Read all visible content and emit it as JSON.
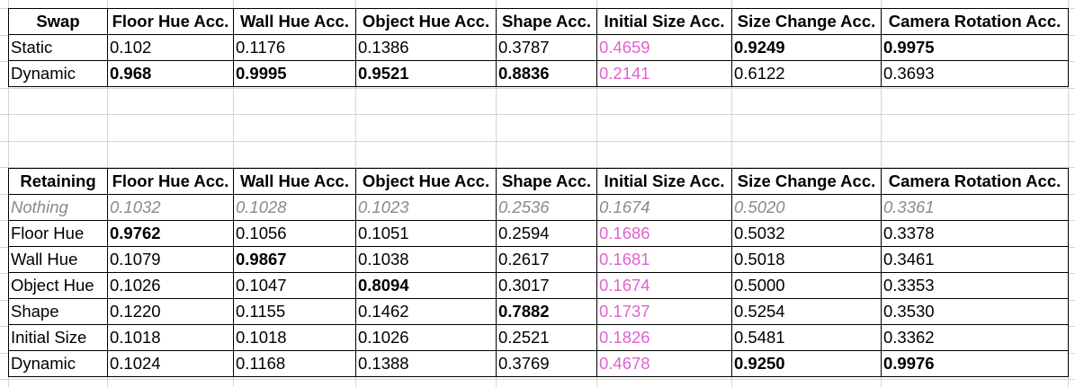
{
  "sheet": {
    "columns": [
      "",
      "Floor Hue Acc.",
      "Wall Hue Acc.",
      "Object Hue Acc.",
      "Shape Acc.",
      "Initial Size Acc.",
      "Size Change Acc.",
      "Camera Rotation Acc."
    ],
    "accent_pink": "#e062d0",
    "muted_gray": "#8a8a8a"
  },
  "swap_table": {
    "header": [
      "Swap",
      "Floor Hue Acc.",
      "Wall Hue Acc.",
      "Object Hue Acc.",
      "Shape Acc.",
      "Initial Size Acc.",
      "Size Change Acc.",
      "Camera Rotation Acc."
    ],
    "rows": [
      {
        "label": "Static",
        "values": [
          "0.102",
          "0.1176",
          "0.1386",
          "0.3787",
          "0.4659",
          "0.9249",
          "0.9975"
        ],
        "bold": [
          false,
          false,
          false,
          false,
          false,
          true,
          true
        ]
      },
      {
        "label": "Dynamic",
        "values": [
          "0.968",
          "0.9995",
          "0.9521",
          "0.8836",
          "0.2141",
          "0.6122",
          "0.3693"
        ],
        "bold": [
          true,
          true,
          true,
          true,
          false,
          false,
          false
        ]
      }
    ]
  },
  "retaining_table": {
    "header": [
      "Retaining",
      "Floor Hue Acc.",
      "Wall Hue Acc.",
      "Object Hue Acc.",
      "Shape Acc.",
      "Initial Size Acc.",
      "Size Change Acc.",
      "Camera Rotation Acc."
    ],
    "rows": [
      {
        "label": "Nothing",
        "values": [
          "0.1032",
          "0.1028",
          "0.1023",
          "0.2536",
          "0.1674",
          "0.5020",
          "0.3361"
        ],
        "bold": [
          false,
          false,
          false,
          false,
          false,
          false,
          false
        ],
        "muted": true
      },
      {
        "label": "Floor Hue",
        "values": [
          "0.9762",
          "0.1056",
          "0.1051",
          "0.2594",
          "0.1686",
          "0.5032",
          "0.3378"
        ],
        "bold": [
          true,
          false,
          false,
          false,
          false,
          false,
          false
        ]
      },
      {
        "label": "Wall Hue",
        "values": [
          "0.1079",
          "0.9867",
          "0.1038",
          "0.2617",
          "0.1681",
          "0.5018",
          "0.3461"
        ],
        "bold": [
          false,
          true,
          false,
          false,
          false,
          false,
          false
        ]
      },
      {
        "label": "Object Hue",
        "values": [
          "0.1026",
          "0.1047",
          "0.8094",
          "0.3017",
          "0.1674",
          "0.5000",
          "0.3353"
        ],
        "bold": [
          false,
          false,
          true,
          false,
          false,
          false,
          false
        ]
      },
      {
        "label": "Shape",
        "values": [
          "0.1220",
          "0.1155",
          "0.1462",
          "0.7882",
          "0.1737",
          "0.5254",
          "0.3530"
        ],
        "bold": [
          false,
          false,
          false,
          true,
          false,
          false,
          false
        ]
      },
      {
        "label": "Initial Size",
        "values": [
          "0.1018",
          "0.1018",
          "0.1026",
          "0.2521",
          "0.1826",
          "0.5481",
          "0.3362"
        ],
        "bold": [
          false,
          false,
          false,
          false,
          false,
          false,
          false
        ]
      },
      {
        "label": "Dynamic",
        "values": [
          "0.1024",
          "0.1168",
          "0.1388",
          "0.3769",
          "0.4678",
          "0.9250",
          "0.9976"
        ],
        "bold": [
          false,
          false,
          false,
          false,
          false,
          true,
          true
        ]
      }
    ]
  }
}
